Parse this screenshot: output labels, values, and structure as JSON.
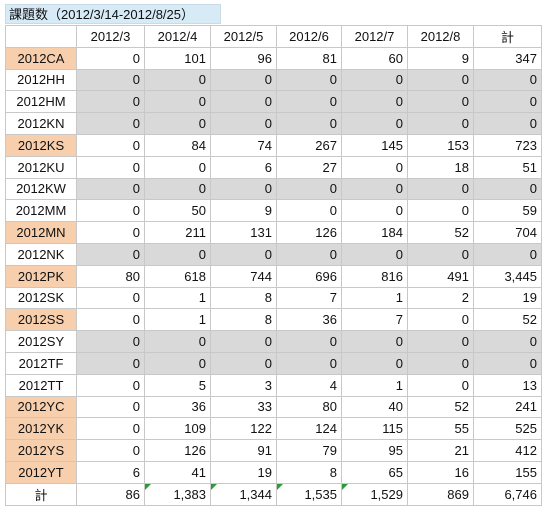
{
  "title": "課題数（2012/3/14-2012/8/25）",
  "columns": [
    "",
    "2012/3",
    "2012/4",
    "2012/5",
    "2012/6",
    "2012/7",
    "2012/8",
    "計"
  ],
  "rows": [
    {
      "label": "2012CA",
      "values": [
        "0",
        "101",
        "96",
        "81",
        "60",
        "9",
        "347"
      ],
      "peach": true,
      "gray": false
    },
    {
      "label": "2012HH",
      "values": [
        "0",
        "0",
        "0",
        "0",
        "0",
        "0",
        "0"
      ],
      "peach": false,
      "gray": true
    },
    {
      "label": "2012HM",
      "values": [
        "0",
        "0",
        "0",
        "0",
        "0",
        "0",
        "0"
      ],
      "peach": false,
      "gray": true
    },
    {
      "label": "2012KN",
      "values": [
        "0",
        "0",
        "0",
        "0",
        "0",
        "0",
        "0"
      ],
      "peach": false,
      "gray": true
    },
    {
      "label": "2012KS",
      "values": [
        "0",
        "84",
        "74",
        "267",
        "145",
        "153",
        "723"
      ],
      "peach": true,
      "gray": false
    },
    {
      "label": "2012KU",
      "values": [
        "0",
        "0",
        "6",
        "27",
        "0",
        "18",
        "51"
      ],
      "peach": false,
      "gray": false
    },
    {
      "label": "2012KW",
      "values": [
        "0",
        "0",
        "0",
        "0",
        "0",
        "0",
        "0"
      ],
      "peach": false,
      "gray": true
    },
    {
      "label": "2012MM",
      "values": [
        "0",
        "50",
        "9",
        "0",
        "0",
        "0",
        "59"
      ],
      "peach": false,
      "gray": false
    },
    {
      "label": "2012MN",
      "values": [
        "0",
        "211",
        "131",
        "126",
        "184",
        "52",
        "704"
      ],
      "peach": true,
      "gray": false
    },
    {
      "label": "2012NK",
      "values": [
        "0",
        "0",
        "0",
        "0",
        "0",
        "0",
        "0"
      ],
      "peach": false,
      "gray": true
    },
    {
      "label": "2012PK",
      "values": [
        "80",
        "618",
        "744",
        "696",
        "816",
        "491",
        "3,445"
      ],
      "peach": true,
      "gray": false
    },
    {
      "label": "2012SK",
      "values": [
        "0",
        "1",
        "8",
        "7",
        "1",
        "2",
        "19"
      ],
      "peach": false,
      "gray": false
    },
    {
      "label": "2012SS",
      "values": [
        "0",
        "1",
        "8",
        "36",
        "7",
        "0",
        "52"
      ],
      "peach": true,
      "gray": false
    },
    {
      "label": "2012SY",
      "values": [
        "0",
        "0",
        "0",
        "0",
        "0",
        "0",
        "0"
      ],
      "peach": false,
      "gray": true
    },
    {
      "label": "2012TF",
      "values": [
        "0",
        "0",
        "0",
        "0",
        "0",
        "0",
        "0"
      ],
      "peach": false,
      "gray": true
    },
    {
      "label": "2012TT",
      "values": [
        "0",
        "5",
        "3",
        "4",
        "1",
        "0",
        "13"
      ],
      "peach": false,
      "gray": false
    },
    {
      "label": "2012YC",
      "values": [
        "0",
        "36",
        "33",
        "80",
        "40",
        "52",
        "241"
      ],
      "peach": true,
      "gray": false
    },
    {
      "label": "2012YK",
      "values": [
        "0",
        "109",
        "122",
        "124",
        "115",
        "55",
        "525"
      ],
      "peach": true,
      "gray": false
    },
    {
      "label": "2012YS",
      "values": [
        "0",
        "126",
        "91",
        "79",
        "95",
        "21",
        "412"
      ],
      "peach": true,
      "gray": false
    },
    {
      "label": "2012YT",
      "values": [
        "6",
        "41",
        "19",
        "8",
        "65",
        "16",
        "155"
      ],
      "peach": true,
      "gray": false
    }
  ],
  "total": {
    "label": "計",
    "values": [
      "86",
      "1,383",
      "1,344",
      "1,535",
      "1,529",
      "869",
      "6,746"
    ],
    "flagged": [
      false,
      true,
      true,
      true,
      true,
      false,
      false
    ]
  },
  "colors": {
    "peach": "#f8cfad",
    "gray": "#d9d9d9",
    "title_bg": "#d7ebf7",
    "flag": "#2d9a3a"
  }
}
